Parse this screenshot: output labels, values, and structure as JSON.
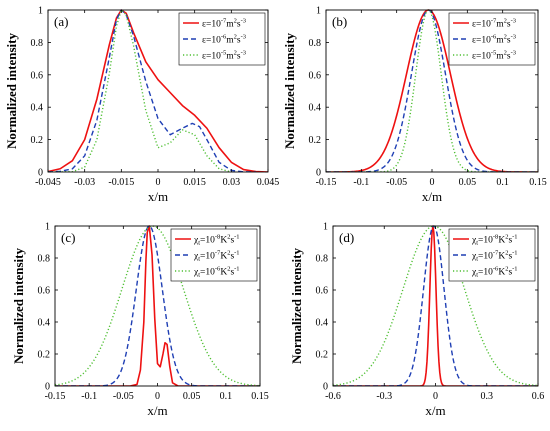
{
  "colors": {
    "red": "#ee1111",
    "blue": "#1f3fb4",
    "green": "#4fbf33"
  },
  "chart_data": [
    {
      "panel": "(a)",
      "type": "line",
      "xlabel": "x/m",
      "ylabel": "Normalized intensity",
      "xlim": [
        -0.045,
        0.045
      ],
      "ylim": [
        0,
        1
      ],
      "xticks": [
        -0.045,
        -0.03,
        -0.015,
        0,
        0.015,
        0.03,
        0.045
      ],
      "xtick_labels": [
        "-0.045",
        "-0.03",
        "-0.015",
        "0",
        "0.015",
        "0.03",
        "0.045"
      ],
      "yticks": [
        0,
        0.2,
        0.4,
        0.6,
        0.8,
        1
      ],
      "ytick_labels": [
        "0",
        "0.2",
        "0.4",
        "0.6",
        "0.8",
        "1"
      ],
      "legend_position": "top-right",
      "series": [
        {
          "sym": "ε",
          "pre": "=10",
          "exp": "-7",
          "unit": "m",
          "uexp1": "2",
          "unit2": "s",
          "uexp2": "-3",
          "style": "solid",
          "color": "#ee1111",
          "x": [
            -0.045,
            -0.04,
            -0.035,
            -0.03,
            -0.025,
            -0.02,
            -0.017,
            -0.015,
            -0.013,
            -0.01,
            -0.005,
            0,
            0.005,
            0.01,
            0.015,
            0.02,
            0.025,
            0.03,
            0.035,
            0.04,
            0.045
          ],
          "y": [
            0.003,
            0.02,
            0.07,
            0.2,
            0.45,
            0.78,
            0.95,
            1.0,
            0.98,
            0.86,
            0.68,
            0.57,
            0.49,
            0.41,
            0.35,
            0.27,
            0.15,
            0.06,
            0.015,
            0.003,
            0
          ]
        },
        {
          "sym": "ε",
          "pre": "=10",
          "exp": "-6",
          "unit": "m",
          "uexp1": "2",
          "unit2": "s",
          "uexp2": "-3",
          "style": "dashed",
          "color": "#1f3fb4",
          "x": [
            -0.045,
            -0.04,
            -0.035,
            -0.03,
            -0.025,
            -0.02,
            -0.017,
            -0.015,
            -0.013,
            -0.01,
            -0.005,
            0,
            0.005,
            0.01,
            0.014,
            0.017,
            0.02,
            0.025,
            0.03,
            0.035,
            0.04
          ],
          "y": [
            0,
            0.004,
            0.02,
            0.1,
            0.32,
            0.7,
            0.94,
            1.0,
            0.97,
            0.84,
            0.56,
            0.33,
            0.23,
            0.27,
            0.3,
            0.28,
            0.2,
            0.06,
            0.01,
            0.001,
            0
          ]
        },
        {
          "sym": "ε",
          "pre": "=10",
          "exp": "-5",
          "unit": "m",
          "uexp1": "2",
          "unit2": "s",
          "uexp2": "-3",
          "style": "dotted",
          "color": "#4fbf33",
          "x": [
            -0.045,
            -0.035,
            -0.03,
            -0.025,
            -0.02,
            -0.017,
            -0.015,
            -0.013,
            -0.01,
            -0.005,
            0,
            0.005,
            0.01,
            0.015,
            0.02,
            0.025,
            0.03
          ],
          "y": [
            0,
            0.002,
            0.03,
            0.2,
            0.6,
            0.9,
            1.0,
            0.97,
            0.78,
            0.38,
            0.15,
            0.18,
            0.26,
            0.23,
            0.1,
            0.02,
            0
          ]
        }
      ]
    },
    {
      "panel": "(b)",
      "type": "line",
      "xlabel": "x/m",
      "ylabel": "Normalized intensity",
      "xlim": [
        -0.15,
        0.15
      ],
      "ylim": [
        0,
        1
      ],
      "xticks": [
        -0.15,
        -0.1,
        -0.05,
        0,
        0.05,
        0.1,
        0.15
      ],
      "xtick_labels": [
        "-0.15",
        "-0.1",
        "-0.05",
        "0",
        "0.05",
        "0.1",
        "0.15"
      ],
      "yticks": [
        0,
        0.2,
        0.4,
        0.6,
        0.8,
        1
      ],
      "ytick_labels": [
        "0",
        "0.2",
        "0.4",
        "0.6",
        "0.8",
        "1"
      ],
      "legend_position": "top-right",
      "series": [
        {
          "sym": "ε",
          "pre": "=10",
          "exp": "-7",
          "unit": "m",
          "uexp1": "2",
          "unit2": "s",
          "uexp2": "-3",
          "style": "solid",
          "color": "#ee1111",
          "gauss": {
            "mu": -0.005,
            "sigma": 0.031
          }
        },
        {
          "sym": "ε",
          "pre": "=10",
          "exp": "-6",
          "unit": "m",
          "uexp1": "2",
          "unit2": "s",
          "uexp2": "-3",
          "style": "dashed",
          "color": "#1f3fb4",
          "gauss": {
            "mu": -0.005,
            "sigma": 0.024
          }
        },
        {
          "sym": "ε",
          "pre": "=10",
          "exp": "-5",
          "unit": "m",
          "uexp1": "2",
          "unit2": "s",
          "uexp2": "-3",
          "style": "dotted",
          "color": "#4fbf33",
          "gauss": {
            "mu": -0.005,
            "sigma": 0.018
          }
        }
      ]
    },
    {
      "panel": "(c)",
      "type": "line",
      "xlabel": "x/m",
      "ylabel": "Normalized intensity",
      "xlim": [
        -0.15,
        0.15
      ],
      "ylim": [
        0,
        1
      ],
      "xticks": [
        -0.15,
        -0.1,
        -0.05,
        0,
        0.05,
        0.1,
        0.15
      ],
      "xtick_labels": [
        "-0.15",
        "-0.1",
        "-0.05",
        "0",
        "0.05",
        "0.1",
        "0.15"
      ],
      "yticks": [
        0,
        0.2,
        0.4,
        0.6,
        0.8,
        1
      ],
      "ytick_labels": [
        "0",
        "0.2",
        "0.4",
        "0.6",
        "0.8",
        "1"
      ],
      "legend_position": "top-right",
      "series": [
        {
          "sym": "χ",
          "sub": "t",
          "pre": "=10",
          "exp": "-8",
          "unit": "K",
          "uexp1": "2",
          "unit2": "s",
          "uexp2": "-1",
          "style": "solid",
          "color": "#ee1111",
          "x": [
            -0.15,
            -0.04,
            -0.03,
            -0.025,
            -0.02,
            -0.017,
            -0.015,
            -0.012,
            -0.008,
            -0.004,
            0,
            0.004,
            0.008,
            0.011,
            0.014,
            0.018,
            0.022,
            0.03,
            0.15
          ],
          "y": [
            0,
            0,
            0.01,
            0.1,
            0.4,
            0.78,
            0.96,
            1.0,
            0.82,
            0.42,
            0.14,
            0.12,
            0.2,
            0.27,
            0.26,
            0.12,
            0.02,
            0,
            0
          ]
        },
        {
          "sym": "χ",
          "sub": "t",
          "pre": "=10",
          "exp": "-7",
          "unit": "K",
          "uexp1": "2",
          "unit2": "s",
          "uexp2": "-1",
          "style": "dashed",
          "color": "#1f3fb4",
          "gauss": {
            "mu": -0.012,
            "sigma": 0.019
          }
        },
        {
          "sym": "χ",
          "sub": "t",
          "pre": "=10",
          "exp": "-6",
          "unit": "K",
          "uexp1": "2",
          "unit2": "s",
          "uexp2": "-1",
          "style": "dotted",
          "color": "#4fbf33",
          "gauss": {
            "mu": -0.007,
            "sigma": 0.045
          }
        }
      ]
    },
    {
      "panel": "(d)",
      "type": "line",
      "xlabel": "x/m",
      "ylabel": "Normalized intensity",
      "xlim": [
        -0.6,
        0.6
      ],
      "ylim": [
        0,
        1
      ],
      "xticks": [
        -0.6,
        -0.3,
        0,
        0.3,
        0.6
      ],
      "xtick_labels": [
        "-0.6",
        "-0.3",
        "0",
        "0.3",
        "0.6"
      ],
      "yticks": [
        0,
        0.2,
        0.4,
        0.6,
        0.8,
        1
      ],
      "ytick_labels": [
        "0",
        "0.2",
        "0.4",
        "0.6",
        "0.8",
        "1"
      ],
      "legend_position": "top-right",
      "series": [
        {
          "sym": "χ",
          "sub": "t",
          "pre": "=10",
          "exp": "-8",
          "unit": "K",
          "uexp1": "2",
          "unit2": "s",
          "uexp2": "-1",
          "style": "solid",
          "color": "#ee1111",
          "gauss": {
            "mu": -0.015,
            "sigma": 0.018
          }
        },
        {
          "sym": "χ",
          "sub": "t",
          "pre": "=10",
          "exp": "-7",
          "unit": "K",
          "uexp1": "2",
          "unit2": "s",
          "uexp2": "-1",
          "style": "dashed",
          "color": "#1f3fb4",
          "gauss": {
            "mu": -0.01,
            "sigma": 0.06
          }
        },
        {
          "sym": "χ",
          "sub": "t",
          "pre": "=10",
          "exp": "-6",
          "unit": "K",
          "uexp1": "2",
          "unit2": "s",
          "uexp2": "-1",
          "style": "dotted",
          "color": "#4fbf33",
          "gauss": {
            "mu": -0.01,
            "sigma": 0.18
          }
        }
      ]
    }
  ]
}
